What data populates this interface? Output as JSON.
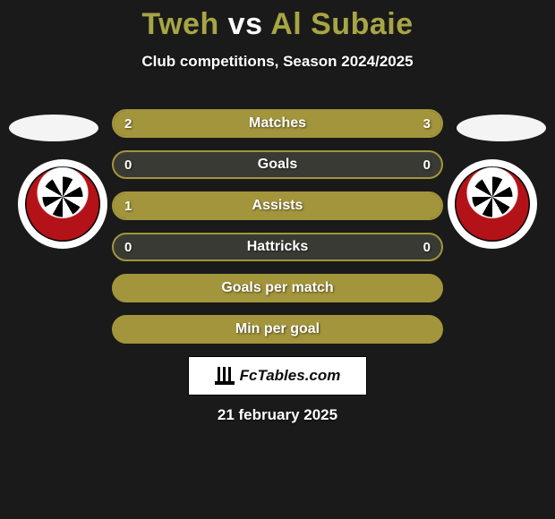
{
  "background_color": "#1a1a1a",
  "title": {
    "player_a": "Tweh",
    "vs": " vs ",
    "player_b": "Al Subaie",
    "color_a": "#a7a545",
    "color_vs": "#ffffff",
    "color_b": "#a7a545",
    "fontsize": 34,
    "fontweight": 800
  },
  "subtitle": {
    "text": "Club competitions, Season 2024/2025",
    "color": "#ffffff",
    "fontsize": 17
  },
  "oval_color": "#f4f4f4",
  "logo_bg": "#ffffff",
  "logo_accent": "#b31318",
  "rows": [
    {
      "label": "Matches",
      "left": "2",
      "right": "3",
      "left_pct": 40,
      "right_pct": 60,
      "left_color": "#a3953c",
      "right_color": "#a3953c"
    },
    {
      "label": "Goals",
      "left": "0",
      "right": "0"
    },
    {
      "label": "Assists",
      "left": "1",
      "right": "",
      "left_pct": 100,
      "right_pct": 0,
      "left_color": "#a3953c",
      "right_color": "#a3953c"
    },
    {
      "label": "Hattricks",
      "left": "0",
      "right": "0"
    },
    {
      "label": "Goals per match"
    },
    {
      "label": "Min per goal"
    }
  ],
  "pill_style": {
    "border_color": "#a3953c",
    "empty_fill": "#3a3a35",
    "full_fill": "#a3953c",
    "label_color": "#ffffff",
    "value_color": "#ffffff",
    "height": 32,
    "radius": 16,
    "fontsize_label": 16,
    "fontsize_value": 15
  },
  "watermark": {
    "text": "FcTables.com",
    "bg": "#ffffff",
    "border": "#000000",
    "text_color": "#0b0b0b",
    "fontsize": 17
  },
  "date": {
    "text": "21 february 2025",
    "color": "#ffffff",
    "fontsize": 17
  }
}
